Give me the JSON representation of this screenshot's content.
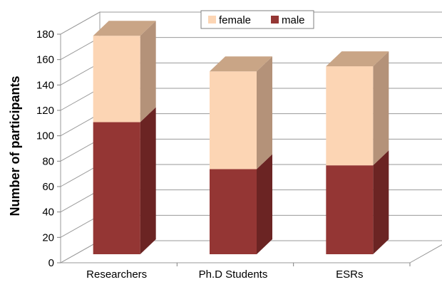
{
  "chart_data": {
    "type": "bar",
    "stacked": true,
    "three_d": true,
    "categories": [
      "Researchers",
      "Ph.D Students",
      "ESRs"
    ],
    "series": [
      {
        "name": "male",
        "values": [
          104,
          67,
          70
        ]
      },
      {
        "name": "female",
        "values": [
          68,
          77,
          78
        ]
      }
    ],
    "ylabel": "Number of participants",
    "xlabel": "",
    "ylim": [
      0,
      180
    ],
    "yticks": [
      0,
      20,
      40,
      60,
      80,
      100,
      120,
      140,
      160,
      180
    ],
    "grid": true,
    "legend": {
      "position": "top",
      "order": [
        "female",
        "male"
      ]
    },
    "colors": {
      "male_front": "#943634",
      "male_side": "#6b2423",
      "male_top": "#7a2d2c",
      "female_front": "#fcd5b4",
      "female_side": "#b49279",
      "female_top": "#c9a586"
    }
  }
}
